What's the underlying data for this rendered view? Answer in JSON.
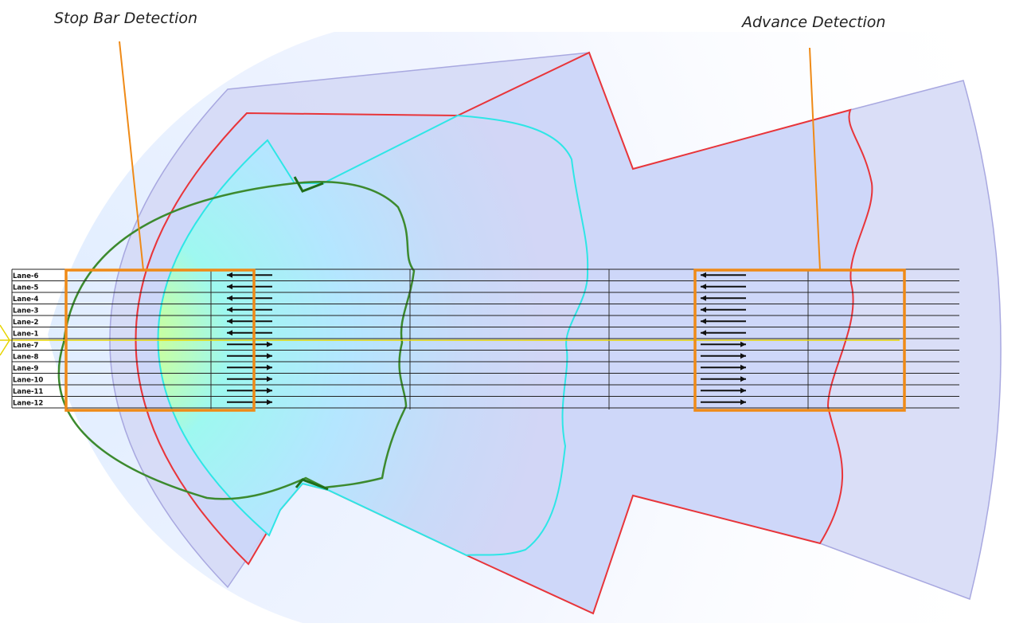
{
  "callouts": {
    "stop_bar": "Stop Bar Detection",
    "advance": "Advance Detection"
  },
  "lanes": [
    {
      "label": "Lane-6",
      "direction": "left"
    },
    {
      "label": "Lane-5",
      "direction": "left"
    },
    {
      "label": "Lane-4",
      "direction": "left"
    },
    {
      "label": "Lane-3",
      "direction": "left"
    },
    {
      "label": "Lane-2",
      "direction": "left"
    },
    {
      "label": "Lane-1",
      "direction": "left"
    },
    {
      "label": "Lane-7",
      "direction": "right"
    },
    {
      "label": "Lane-8",
      "direction": "right"
    },
    {
      "label": "Lane-9",
      "direction": "right"
    },
    {
      "label": "Lane-10",
      "direction": "right"
    },
    {
      "label": "Lane-11",
      "direction": "right"
    },
    {
      "label": "Lane-12",
      "direction": "right"
    }
  ],
  "colors": {
    "outer_coverage_stroke": "#a8a8e0",
    "red_zone": "#e8353a",
    "cyan_zone": "#2ee6e6",
    "green_zone": "#3c8a2e",
    "detection_box": "#ef8a17",
    "lane_line": "#222222",
    "center_line": "#e6d400"
  }
}
